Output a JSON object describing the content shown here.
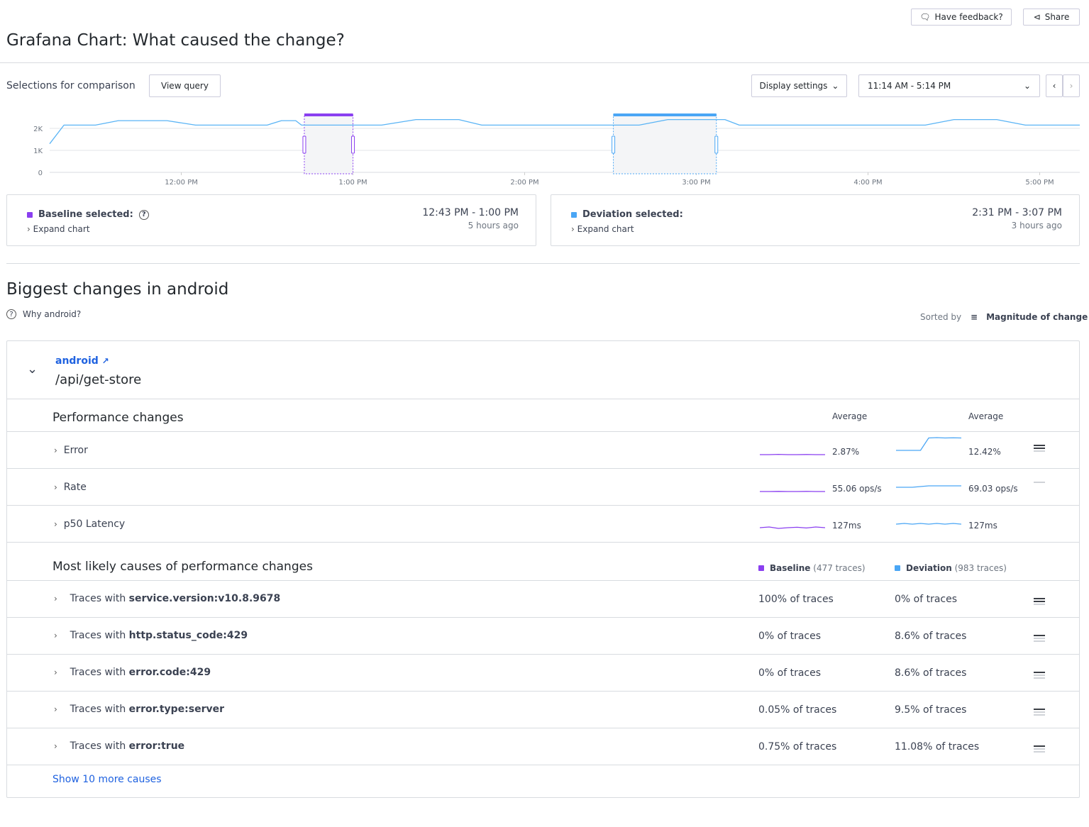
{
  "header": {
    "title": "Grafana Chart: What caused the change?",
    "feedback_label": "Have feedback?",
    "share_label": "Share"
  },
  "toolbar": {
    "selections_label": "Selections for comparison",
    "view_query_label": "View query",
    "display_settings_label": "Display settings",
    "time_range": "11:14 AM - 5:14 PM"
  },
  "chart_data": {
    "type": "line",
    "x_ticks": [
      "12:00 PM",
      "1:00 PM",
      "2:00 PM",
      "3:00 PM",
      "4:00 PM",
      "5:00 PM"
    ],
    "y_ticks": [
      "0",
      "1K",
      "2K"
    ],
    "ylim": [
      0,
      2600
    ],
    "xlim": [
      "11:14",
      "17:14"
    ],
    "grid": true,
    "color": "#5ab4f5",
    "x": [
      "11:14",
      "11:19",
      "11:30",
      "11:38",
      "11:55",
      "12:05",
      "12:30",
      "12:35",
      "12:40",
      "12:42",
      "13:10",
      "13:22",
      "13:37",
      "13:45",
      "14:40",
      "14:50",
      "15:10",
      "15:15",
      "16:20",
      "16:30",
      "16:45",
      "16:55",
      "17:14"
    ],
    "y": [
      1300,
      2150,
      2150,
      2350,
      2350,
      2150,
      2150,
      2350,
      2350,
      2150,
      2150,
      2400,
      2400,
      2150,
      2150,
      2400,
      2400,
      2150,
      2150,
      2400,
      2400,
      2150,
      2150
    ],
    "baseline_range": [
      "12:43",
      "13:00"
    ],
    "deviation_range": [
      "14:31",
      "15:07"
    ]
  },
  "baseline": {
    "label": "Baseline selected:",
    "expand": "Expand chart",
    "range": "12:43 PM - 1:00 PM",
    "ago": "5 hours ago",
    "color": "#8a3ff0"
  },
  "deviation": {
    "label": "Deviation selected:",
    "expand": "Expand chart",
    "range": "2:31 PM - 3:07 PM",
    "ago": "3 hours ago",
    "color": "#4aa6f5"
  },
  "section": {
    "title": "Biggest changes in android",
    "why": "Why android?",
    "sorted_by": "Sorted by",
    "sort_value": "Magnitude of change"
  },
  "group": {
    "service": "android",
    "endpoint": "/api/get-store"
  },
  "perf": {
    "title": "Performance changes",
    "avg1": "Average",
    "avg2": "Average",
    "rows": [
      {
        "name": "Error",
        "base": "2.87%",
        "dev": "12.42%",
        "mag": 2,
        "bs": [
          5,
          5,
          5.2,
          5,
          5,
          5.1,
          5,
          5
        ],
        "ds": [
          5,
          5,
          5,
          5,
          12,
          12.2,
          12,
          12.1,
          12
        ]
      },
      {
        "name": "Rate",
        "base": "55.06 ops/s",
        "dev": "69.03 ops/s",
        "mag": 0,
        "bs": [
          5,
          5,
          5.1,
          5,
          5,
          5.1,
          5,
          5
        ],
        "ds": [
          5,
          5,
          5,
          5.5,
          6,
          6,
          6,
          6,
          6
        ]
      },
      {
        "name": "p50 Latency",
        "base": "127ms",
        "dev": "127ms",
        "mag": -1,
        "bs": [
          5,
          5.5,
          4.5,
          5,
          5.3,
          4.8,
          5.5,
          5
        ],
        "ds": [
          5,
          5.5,
          5,
          5.5,
          5,
          5.5,
          5,
          5.5,
          5
        ]
      }
    ]
  },
  "causes": {
    "title": "Most likely causes of performance changes",
    "base_label": "Baseline",
    "base_count": "(477 traces)",
    "dev_label": "Deviation",
    "dev_count": "(983 traces)",
    "prefix": "Traces with",
    "rows": [
      {
        "attr": "service.version:v10.8.9678",
        "base": "100% of traces",
        "dev": "0% of traces",
        "mag": 2
      },
      {
        "attr": "http.status_code:429",
        "base": "0% of traces",
        "dev": "8.6% of traces",
        "mag": 1
      },
      {
        "attr": "error.code:429",
        "base": "0% of traces",
        "dev": "8.6% of traces",
        "mag": 1
      },
      {
        "attr": "error.type:server",
        "base": "0.05% of traces",
        "dev": "9.5% of traces",
        "mag": 1
      },
      {
        "attr": "error:true",
        "base": "0.75% of traces",
        "dev": "11.08% of traces",
        "mag": 1
      }
    ],
    "show_more": "Show 10 more causes"
  }
}
